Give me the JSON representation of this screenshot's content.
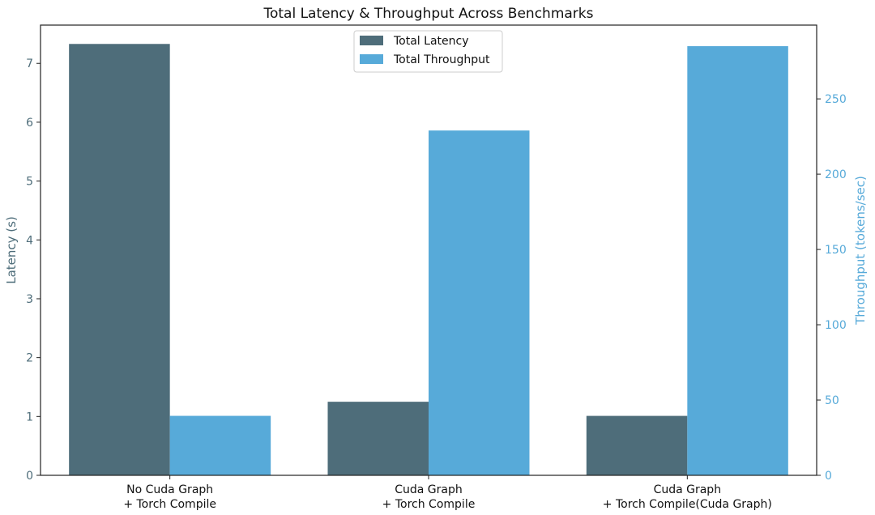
{
  "chart_data": {
    "type": "bar",
    "title": "Total Latency & Throughput Across Benchmarks",
    "categories": [
      [
        "No Cuda Graph",
        "+ Torch Compile"
      ],
      [
        "Cuda Graph",
        "+ Torch Compile"
      ],
      [
        "Cuda Graph",
        "+ Torch Compile(Cuda Graph)"
      ]
    ],
    "series": [
      {
        "name": "Total Latency",
        "axis": "left",
        "color": "#4e6d7a",
        "values": [
          7.33,
          1.25,
          1.01
        ]
      },
      {
        "name": "Total Throughput",
        "axis": "right",
        "color": "#57aad9",
        "values": [
          39.5,
          229,
          285
        ]
      }
    ],
    "y_left": {
      "label": "Latency (s)",
      "lim": [
        0,
        7.65
      ],
      "ticks": [
        0,
        1,
        2,
        3,
        4,
        5,
        6,
        7
      ],
      "color": "#4e6d7a"
    },
    "y_right": {
      "label": "Throughput (tokens/sec)",
      "lim": [
        0,
        299
      ],
      "ticks": [
        0,
        50,
        100,
        150,
        200,
        250
      ],
      "color": "#57aad9"
    },
    "grid": false,
    "legend_position": "top-center"
  }
}
